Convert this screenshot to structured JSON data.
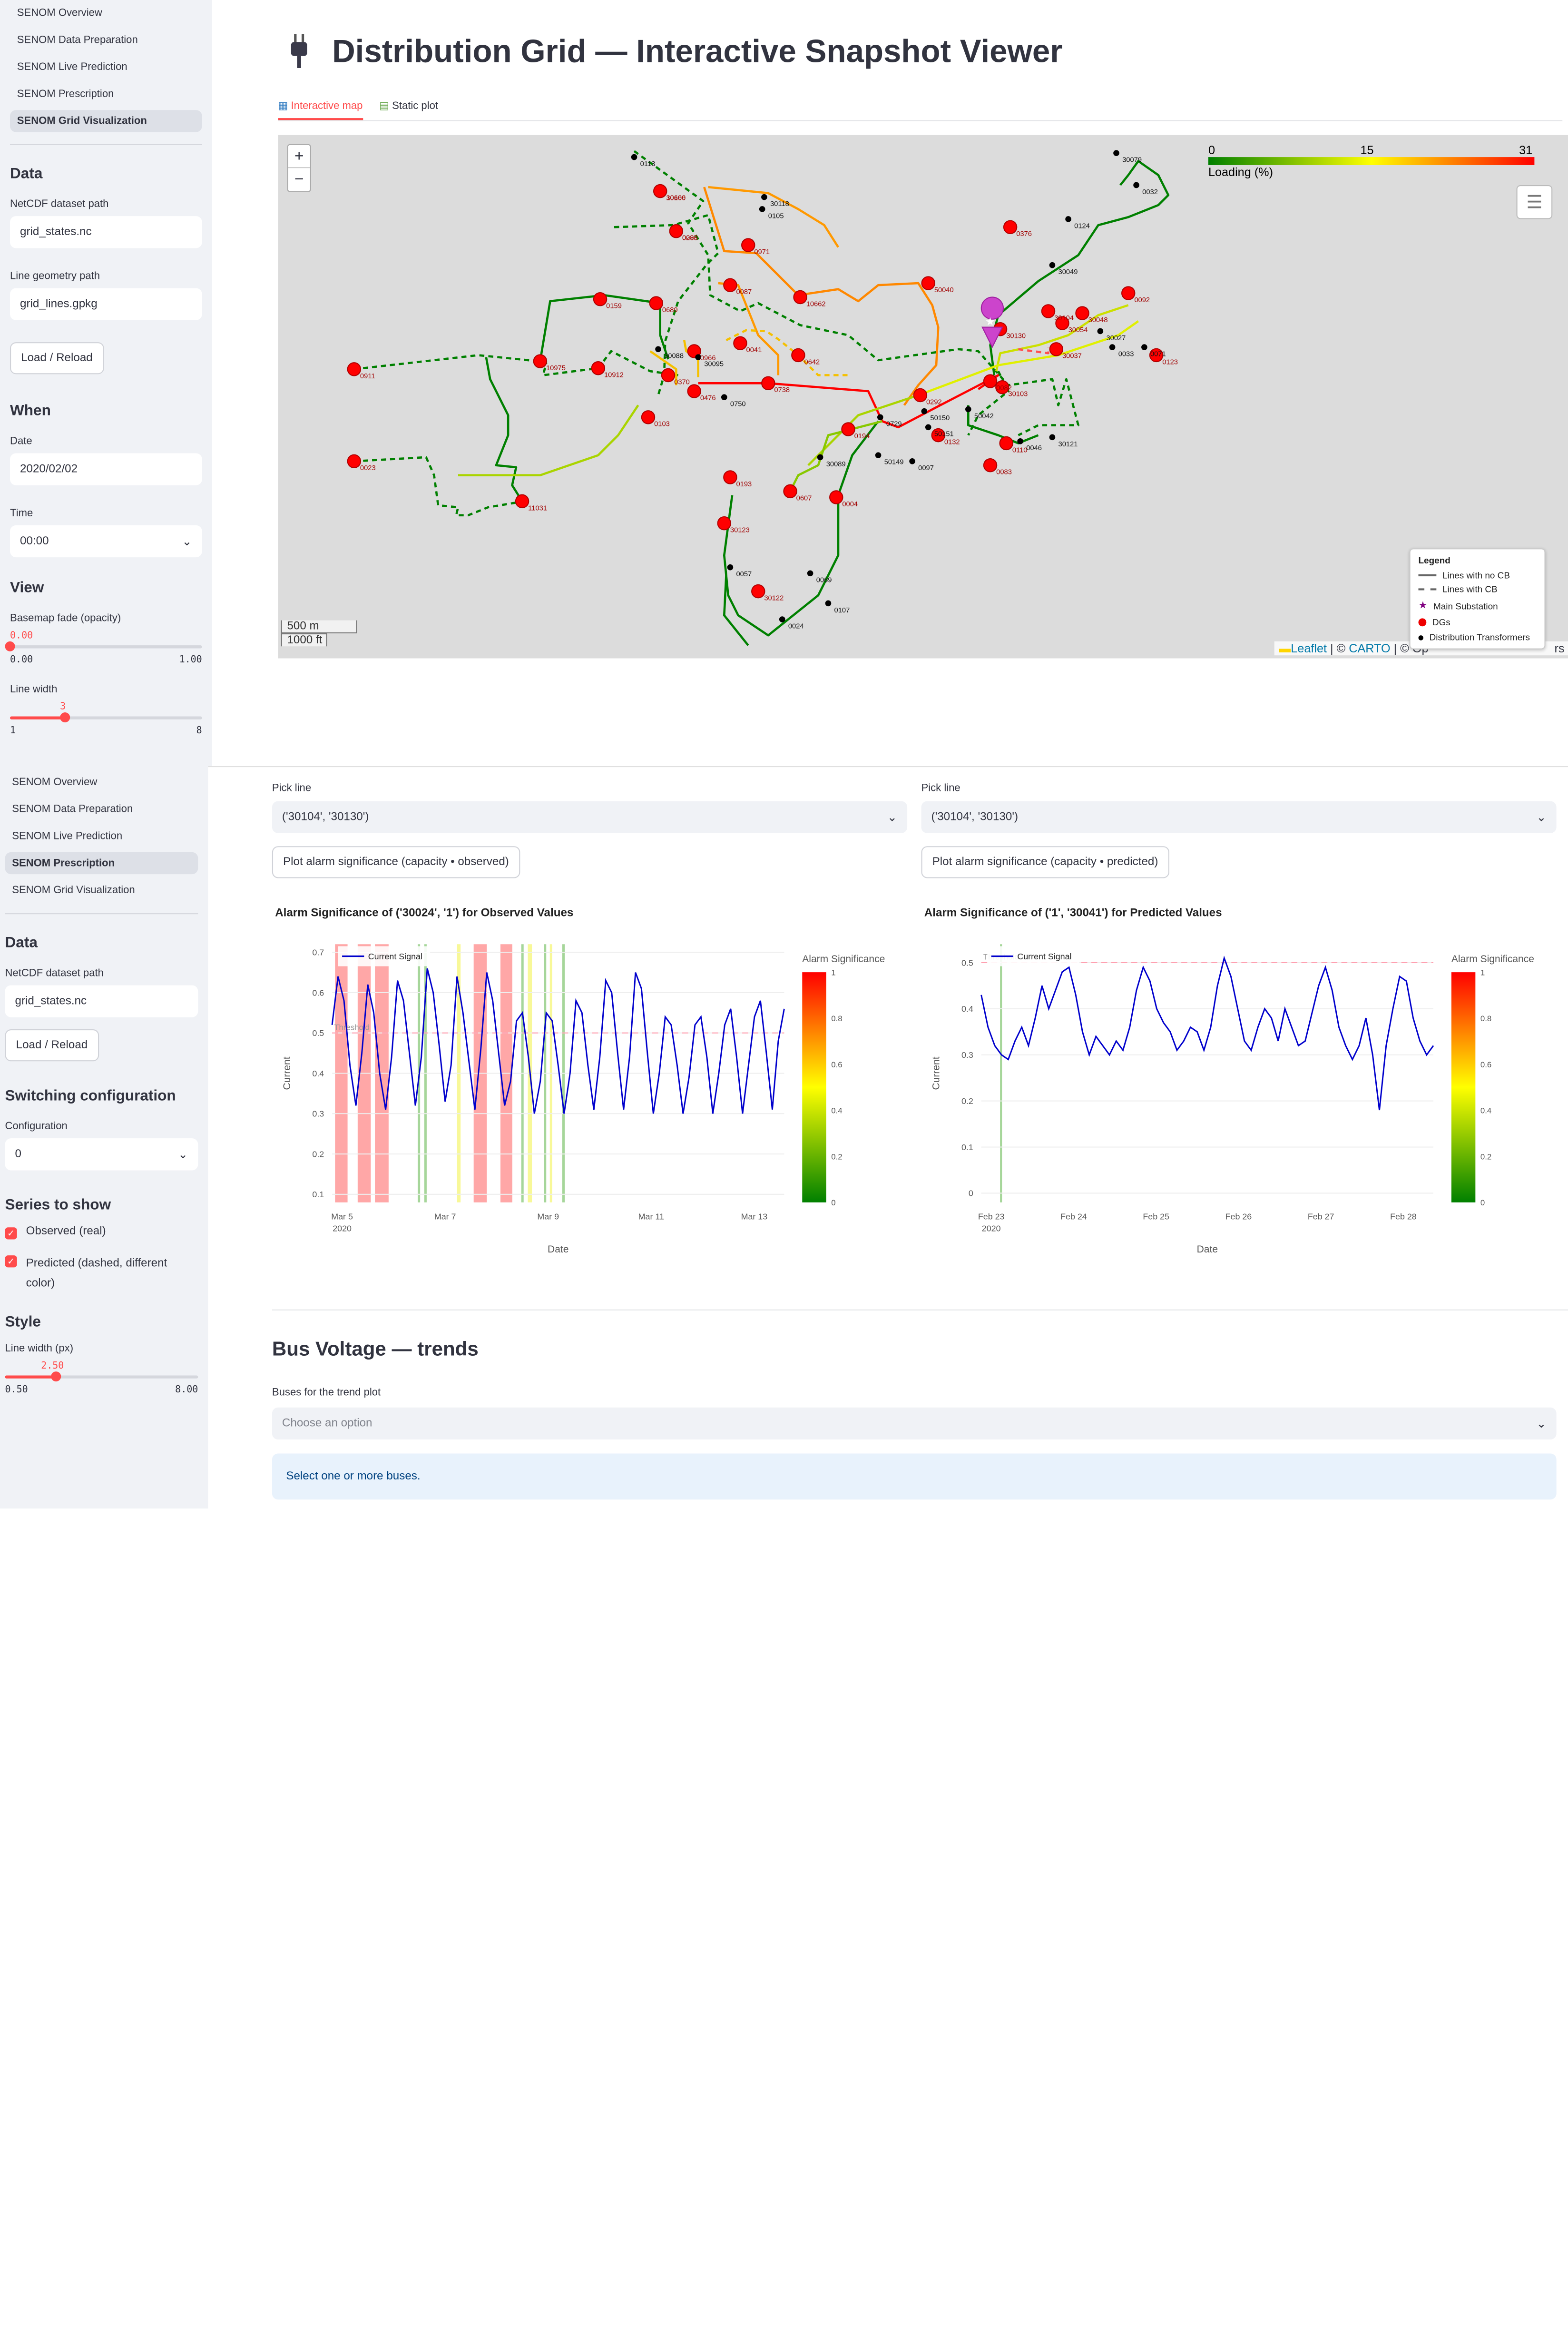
{
  "top": {
    "nav": [
      "SENOM Overview",
      "SENOM Data Preparation",
      "SENOM Live Prediction",
      "SENOM Prescription",
      "SENOM Grid Visualization"
    ],
    "active_nav": 4,
    "data_header": "Data",
    "netcdf_label": "NetCDF dataset path",
    "netcdf_value": "grid_states.nc",
    "geom_label": "Line geometry path",
    "geom_value": "grid_lines.gpkg",
    "load_button": "Load / Reload",
    "when_header": "When",
    "date_label": "Date",
    "date_value": "2020/02/02",
    "time_label": "Time",
    "time_value": "00:00",
    "view_header": "View",
    "fade_label": "Basemap fade (opacity)",
    "fade_value": "0.00",
    "fade_min": "0.00",
    "fade_max": "1.00",
    "fade_level": 0,
    "width_label": "Line width",
    "width_value": "3",
    "width_min": "1",
    "width_max": "8",
    "width_level": 0.2857,
    "title": "Distribution Grid — Interactive Snapshot Viewer",
    "tabs": [
      "Interactive map",
      "Static plot"
    ],
    "map": {
      "zoom_in": "+",
      "zoom_out": "−",
      "colorbar_ticks": [
        "0",
        "15",
        "31"
      ],
      "colorbar_caption": "Loading (%)",
      "colors": {
        "low": "#008000",
        "mid": "#ffff00",
        "high": "#ff0000"
      },
      "scale_m": "500 m",
      "scale_ft": "1000 ft",
      "attribution": {
        "leaflet": "Leaflet",
        "carto": "CARTO",
        "rest": "| © Op",
        "tail": "rs"
      },
      "legend": {
        "title": "Legend",
        "items": [
          "Lines with no CB",
          "Lines with CB",
          "Main Substation",
          "DGs",
          "Distribution Transformers"
        ]
      },
      "node_labels": [
        "10666",
        "0298",
        "0376",
        "50040",
        "10662",
        "0087",
        "0971",
        "0159",
        "0689",
        "0966",
        "0041",
        "0642",
        "0911",
        "10975",
        "10912",
        "0370",
        "0476",
        "0738",
        "0103",
        "0292",
        "0194",
        "0132",
        "0023",
        "11031",
        "0193",
        "0607",
        "0004",
        "30123",
        "30122",
        "30103",
        "0082",
        "30130",
        "30104",
        "30054",
        "30048",
        "30037",
        "0092",
        "0123",
        "0110",
        "0083",
        "0113",
        "30118",
        "0105",
        "30095",
        "30088",
        "0750",
        "0729",
        "50150",
        "50042",
        "50151",
        "50149",
        "0097",
        "30089",
        "0057",
        "0069",
        "0107",
        "0024",
        "30079",
        "0032",
        "0124",
        "30049",
        "30027",
        "0033",
        "0071",
        "0046",
        "30121",
        "30100",
        "0085"
      ]
    }
  },
  "bottom": {
    "nav": [
      "SENOM Overview",
      "SENOM Data Preparation",
      "SENOM Live Prediction",
      "SENOM Prescription",
      "SENOM Grid Visualization"
    ],
    "active_nav": 3,
    "data_header": "Data",
    "netcdf_label": "NetCDF dataset path",
    "netcdf_value": "grid_states.nc",
    "load_button": "Load / Reload",
    "switch_header": "Switching configuration",
    "config_label": "Configuration",
    "config_value": "0",
    "series_header": "Series to show",
    "check_observed": "Observed (real)",
    "check_predicted": "Predicted (dashed, different color)",
    "style_header": "Style",
    "lw_label": "Line width (px)",
    "lw_value": "2.50",
    "lw_min": "0.50",
    "lw_max": "8.00",
    "lw_level": 0.2667,
    "left": {
      "pick_label": "Pick line",
      "pick_value": "('30104', '30130')",
      "button": "Plot alarm significance (capacity • observed)"
    },
    "right": {
      "pick_label": "Pick line",
      "pick_value": "('30104', '30130')",
      "button": "Plot alarm significance (capacity • predicted)"
    },
    "bus_header": "Bus Voltage — trends",
    "bus_label": "Buses for the trend plot",
    "bus_placeholder": "Choose an option",
    "info": "Select one or more buses."
  },
  "chart_data": [
    {
      "type": "line",
      "title": "Alarm Significance of ('30024', '1') for Observed Values",
      "xlabel": "Date",
      "ylabel": "Current",
      "x_ticks": [
        "Mar 5",
        "Mar 7",
        "Mar 9",
        "Mar 11",
        "Mar 13"
      ],
      "x_year": "2020",
      "y_ticks": [
        "0.1",
        "0.2",
        "0.3",
        "0.4",
        "0.5",
        "0.6",
        "0.7"
      ],
      "ylim": [
        0.08,
        0.72
      ],
      "threshold": 0.5,
      "threshold_label": "Threshold",
      "series": [
        {
          "name": "Current Signal",
          "color": "#0000cc",
          "values": [
            0.52,
            0.64,
            0.58,
            0.42,
            0.32,
            0.45,
            0.62,
            0.55,
            0.4,
            0.31,
            0.44,
            0.63,
            0.58,
            0.45,
            0.32,
            0.44,
            0.66,
            0.6,
            0.47,
            0.33,
            0.42,
            0.64,
            0.55,
            0.43,
            0.31,
            0.46,
            0.65,
            0.58,
            0.45,
            0.32,
            0.38,
            0.53,
            0.55,
            0.44,
            0.3,
            0.38,
            0.55,
            0.53,
            0.42,
            0.3,
            0.4,
            0.58,
            0.55,
            0.42,
            0.31,
            0.44,
            0.63,
            0.6,
            0.45,
            0.31,
            0.44,
            0.65,
            0.61,
            0.45,
            0.3,
            0.4,
            0.54,
            0.52,
            0.42,
            0.3,
            0.39,
            0.52,
            0.54,
            0.44,
            0.3,
            0.4,
            0.52,
            0.56,
            0.44,
            0.3,
            0.42,
            0.54,
            0.58,
            0.45,
            0.31,
            0.48,
            0.56
          ]
        }
      ],
      "colorbar": {
        "title": "Alarm Significance",
        "ticks": [
          "0",
          "0.2",
          "0.4",
          "0.6",
          "0.8",
          "1"
        ]
      },
      "bands": [
        {
          "x0": 0.5,
          "x1": 2.6,
          "c": "red"
        },
        {
          "x0": 4.3,
          "x1": 6.5,
          "c": "red"
        },
        {
          "x0": 7.2,
          "x1": 9.5,
          "c": "red"
        },
        {
          "x0": 14.4,
          "x1": 14.8,
          "c": "green"
        },
        {
          "x0": 15.5,
          "x1": 15.9,
          "c": "green"
        },
        {
          "x0": 21.0,
          "x1": 21.6,
          "c": "yellow"
        },
        {
          "x0": 23.8,
          "x1": 26.0,
          "c": "red"
        },
        {
          "x0": 28.3,
          "x1": 30.3,
          "c": "red"
        },
        {
          "x0": 31.8,
          "x1": 32.2,
          "c": "green"
        },
        {
          "x0": 32.9,
          "x1": 33.6,
          "c": "yellow"
        },
        {
          "x0": 35.6,
          "x1": 36.0,
          "c": "green"
        },
        {
          "x0": 36.6,
          "x1": 37.0,
          "c": "yellow"
        },
        {
          "x0": 38.7,
          "x1": 39.1,
          "c": "green"
        }
      ]
    },
    {
      "type": "line",
      "title": "Alarm Significance of ('1', '30041') for Predicted Values",
      "xlabel": "Date",
      "ylabel": "Current",
      "x_ticks": [
        "Feb 23",
        "Feb 24",
        "Feb 25",
        "Feb 26",
        "Feb 27",
        "Feb 28"
      ],
      "x_year": "2020",
      "y_ticks": [
        "0",
        "0.1",
        "0.2",
        "0.3",
        "0.4",
        "0.5"
      ],
      "ylim": [
        -0.02,
        0.54
      ],
      "threshold": 0.5,
      "threshold_label": "Threshold",
      "series": [
        {
          "name": "Current Signal",
          "color": "#0000cc",
          "values": [
            0.43,
            0.36,
            0.32,
            0.3,
            0.29,
            0.33,
            0.36,
            0.32,
            0.38,
            0.45,
            0.4,
            0.44,
            0.48,
            0.49,
            0.43,
            0.35,
            0.3,
            0.34,
            0.32,
            0.3,
            0.33,
            0.31,
            0.36,
            0.44,
            0.49,
            0.46,
            0.4,
            0.37,
            0.35,
            0.31,
            0.33,
            0.36,
            0.35,
            0.31,
            0.36,
            0.45,
            0.51,
            0.47,
            0.4,
            0.33,
            0.31,
            0.36,
            0.4,
            0.38,
            0.33,
            0.4,
            0.36,
            0.32,
            0.33,
            0.39,
            0.45,
            0.49,
            0.44,
            0.36,
            0.32,
            0.29,
            0.32,
            0.38,
            0.3,
            0.18,
            0.32,
            0.4,
            0.47,
            0.46,
            0.38,
            0.33,
            0.3,
            0.32
          ]
        }
      ],
      "colorbar": {
        "title": "Alarm Significance",
        "ticks": [
          "0",
          "0.2",
          "0.4",
          "0.6",
          "0.8",
          "1"
        ]
      },
      "bands": [
        {
          "x0": 2.78,
          "x1": 2.86,
          "c": "green"
        }
      ]
    }
  ]
}
